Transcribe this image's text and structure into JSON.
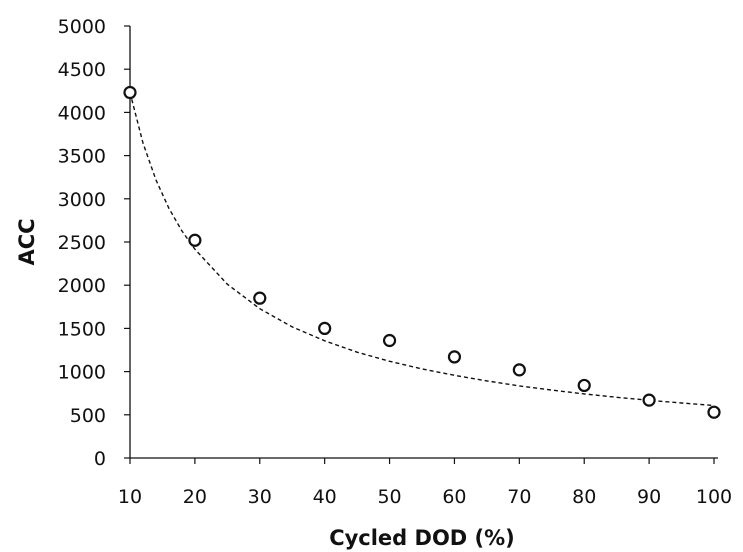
{
  "chart_data": {
    "type": "scatter",
    "title": "",
    "xlabel": "Cycled DOD (%)",
    "ylabel": "ACC",
    "xlim": [
      10,
      100
    ],
    "ylim": [
      0,
      5000
    ],
    "x_ticks": [
      10,
      20,
      30,
      40,
      50,
      60,
      70,
      80,
      90,
      100
    ],
    "y_ticks": [
      0,
      500,
      1000,
      1500,
      2000,
      2500,
      3000,
      3500,
      4000,
      4500,
      5000
    ],
    "grid": false,
    "legend": "none",
    "series": [
      {
        "marker": "open-circle",
        "x": [
          10,
          20,
          30,
          40,
          50,
          60,
          70,
          80,
          90,
          100
        ],
        "y": [
          4230,
          2520,
          1850,
          1500,
          1360,
          1170,
          1020,
          840,
          670,
          530
        ]
      }
    ],
    "trendline": {
      "style": "dashed",
      "type": "power",
      "x": [
        10,
        12,
        14,
        16,
        18,
        20,
        25,
        30,
        35,
        40,
        45,
        50,
        55,
        60,
        65,
        70,
        75,
        80,
        85,
        90,
        95,
        100
      ],
      "y": [
        4230,
        3645,
        3218,
        2890,
        2629,
        2417,
        2012,
        1728,
        1517,
        1356,
        1225,
        1119,
        1031,
        957,
        892,
        835,
        786,
        742,
        703,
        668,
        636,
        608
      ]
    },
    "colors": {
      "markers": "#111111",
      "trendline": "#111111",
      "axes": "#111111"
    }
  }
}
